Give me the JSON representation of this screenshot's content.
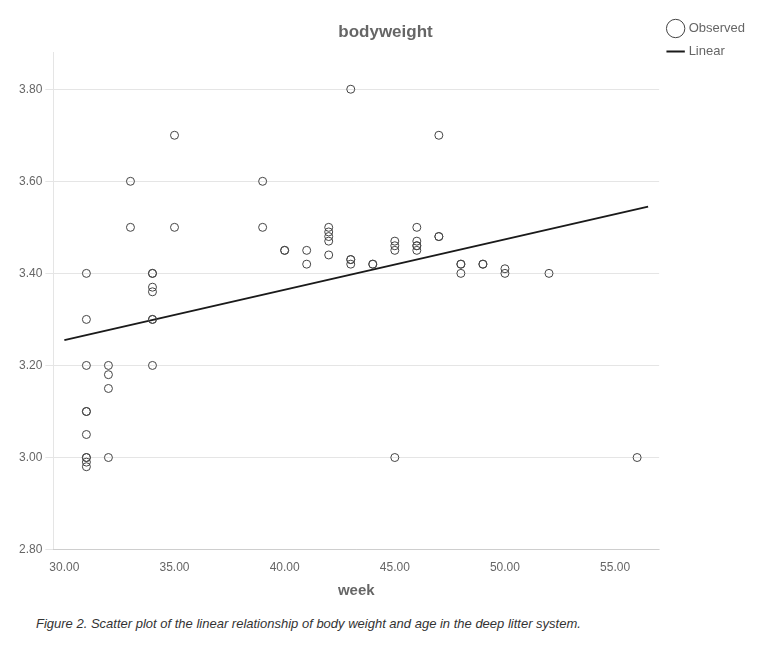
{
  "chart_data": {
    "type": "scatter",
    "title": "bodyweight",
    "xlabel": "week",
    "caption": "Figure 2. Scatter plot of the linear relationship of body weight and age in the deep litter system.",
    "series": [
      {
        "name": "Observed",
        "type": "scatter",
        "color": "#444444",
        "marker": "circle",
        "x": [
          31,
          31,
          31,
          31,
          31,
          31,
          31,
          31,
          31,
          31,
          32,
          32,
          32,
          32,
          33,
          33,
          34,
          34,
          34,
          34,
          34,
          34,
          34,
          35,
          35,
          39,
          39,
          40,
          40,
          41,
          41,
          42,
          42,
          42,
          42,
          42,
          43,
          43,
          43,
          43,
          44,
          44,
          45,
          45,
          45,
          45,
          46,
          46,
          46,
          46,
          46,
          47,
          47,
          47,
          48,
          48,
          48,
          49,
          49,
          50,
          50,
          52,
          56
        ],
        "values": [
          3.4,
          3.3,
          3.2,
          3.1,
          3.1,
          3.05,
          3.0,
          3.0,
          2.99,
          2.98,
          3.2,
          3.18,
          3.15,
          3.0,
          3.5,
          3.6,
          3.4,
          3.4,
          3.3,
          3.3,
          3.2,
          3.37,
          3.36,
          3.7,
          3.5,
          3.6,
          3.5,
          3.45,
          3.45,
          3.45,
          3.42,
          3.5,
          3.49,
          3.48,
          3.47,
          3.44,
          3.8,
          3.43,
          3.43,
          3.42,
          3.42,
          3.42,
          3.47,
          3.46,
          3.45,
          3.0,
          3.46,
          3.45,
          3.47,
          3.46,
          3.5,
          3.48,
          3.48,
          3.7,
          3.42,
          3.42,
          3.4,
          3.42,
          3.42,
          3.41,
          3.4,
          3.4,
          3.0
        ]
      },
      {
        "name": "Linear",
        "type": "line",
        "color": "#1a1a1a",
        "x": [
          30.0,
          56.5
        ],
        "values": [
          3.255,
          3.545
        ]
      }
    ],
    "xlim": [
      29.5,
      57.0
    ],
    "ylim": [
      2.8,
      3.88
    ],
    "xticks": [
      {
        "value": 30.0,
        "label": "30.00"
      },
      {
        "value": 35.0,
        "label": "35.00"
      },
      {
        "value": 40.0,
        "label": "40.00"
      },
      {
        "value": 45.0,
        "label": "45.00"
      },
      {
        "value": 50.0,
        "label": "50.00"
      },
      {
        "value": 55.0,
        "label": "55.00"
      }
    ],
    "yticks": [
      {
        "value": 2.8,
        "label": "2.80"
      },
      {
        "value": 3.0,
        "label": "3.00"
      },
      {
        "value": 3.2,
        "label": "3.20"
      },
      {
        "value": 3.4,
        "label": "3.40"
      },
      {
        "value": 3.6,
        "label": "3.60"
      },
      {
        "value": 3.8,
        "label": "3.80"
      }
    ],
    "grid": "y",
    "legend": "right"
  }
}
